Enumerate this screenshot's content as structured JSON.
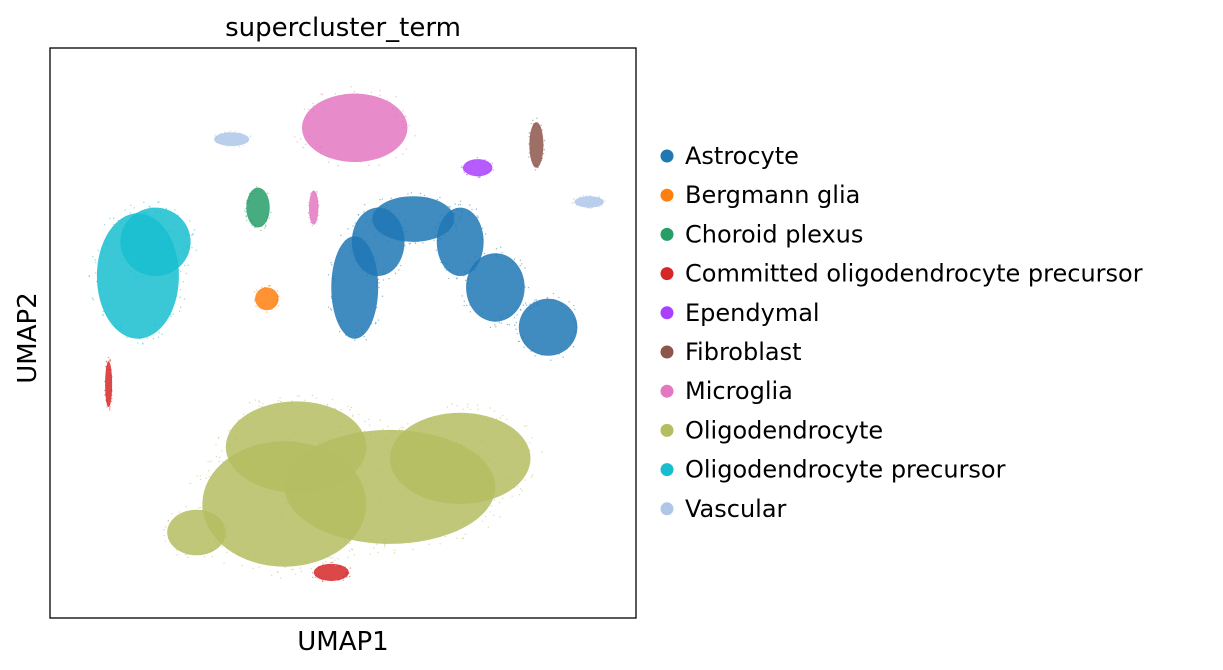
{
  "chart_data": {
    "type": "scatter",
    "title": "supercluster_term",
    "xlabel": "UMAP1",
    "ylabel": "UMAP2",
    "grid": false,
    "xticks": false,
    "yticks": false,
    "legend_position": "right-outside",
    "series": [
      {
        "name": "Astrocyte",
        "color": "#1f77b4",
        "clusters": [
          {
            "cx": 0.52,
            "cy": 0.58,
            "rx": 0.04,
            "ry": 0.09
          },
          {
            "cx": 0.56,
            "cy": 0.66,
            "rx": 0.045,
            "ry": 0.06
          },
          {
            "cx": 0.62,
            "cy": 0.7,
            "rx": 0.07,
            "ry": 0.04
          },
          {
            "cx": 0.7,
            "cy": 0.66,
            "rx": 0.04,
            "ry": 0.06
          },
          {
            "cx": 0.76,
            "cy": 0.58,
            "rx": 0.05,
            "ry": 0.06
          },
          {
            "cx": 0.85,
            "cy": 0.51,
            "rx": 0.05,
            "ry": 0.05
          }
        ]
      },
      {
        "name": "Bergmann glia",
        "color": "#ff7f0e",
        "clusters": [
          {
            "cx": 0.37,
            "cy": 0.56,
            "rx": 0.02,
            "ry": 0.02
          }
        ]
      },
      {
        "name": "Choroid plexus",
        "color": "#279e68",
        "clusters": [
          {
            "cx": 0.355,
            "cy": 0.72,
            "rx": 0.02,
            "ry": 0.035
          }
        ]
      },
      {
        "name": "Committed oligodendrocyte precursor",
        "color": "#d62728",
        "clusters": [
          {
            "cx": 0.1,
            "cy": 0.41,
            "rx": 0.006,
            "ry": 0.04
          },
          {
            "cx": 0.48,
            "cy": 0.08,
            "rx": 0.03,
            "ry": 0.015
          }
        ]
      },
      {
        "name": "Ependymal",
        "color": "#aa40fc",
        "clusters": [
          {
            "cx": 0.73,
            "cy": 0.79,
            "rx": 0.025,
            "ry": 0.015
          }
        ]
      },
      {
        "name": "Fibroblast",
        "color": "#8c564b",
        "clusters": [
          {
            "cx": 0.83,
            "cy": 0.83,
            "rx": 0.012,
            "ry": 0.04
          }
        ]
      },
      {
        "name": "Microglia",
        "color": "#e377c2",
        "clusters": [
          {
            "cx": 0.52,
            "cy": 0.86,
            "rx": 0.09,
            "ry": 0.06
          },
          {
            "cx": 0.45,
            "cy": 0.72,
            "rx": 0.008,
            "ry": 0.03
          }
        ]
      },
      {
        "name": "Oligodendrocyte",
        "color": "#b5bd61",
        "clusters": [
          {
            "cx": 0.4,
            "cy": 0.2,
            "rx": 0.14,
            "ry": 0.11
          },
          {
            "cx": 0.58,
            "cy": 0.23,
            "rx": 0.18,
            "ry": 0.1
          },
          {
            "cx": 0.42,
            "cy": 0.3,
            "rx": 0.12,
            "ry": 0.08
          },
          {
            "cx": 0.7,
            "cy": 0.28,
            "rx": 0.12,
            "ry": 0.08
          },
          {
            "cx": 0.25,
            "cy": 0.15,
            "rx": 0.05,
            "ry": 0.04
          }
        ]
      },
      {
        "name": "Oligodendrocyte precursor",
        "color": "#17becf",
        "clusters": [
          {
            "cx": 0.15,
            "cy": 0.6,
            "rx": 0.07,
            "ry": 0.11
          },
          {
            "cx": 0.18,
            "cy": 0.66,
            "rx": 0.06,
            "ry": 0.06
          }
        ]
      },
      {
        "name": "Vascular",
        "color": "#aec7e8",
        "clusters": [
          {
            "cx": 0.31,
            "cy": 0.84,
            "rx": 0.03,
            "ry": 0.012
          },
          {
            "cx": 0.92,
            "cy": 0.73,
            "rx": 0.025,
            "ry": 0.01
          }
        ]
      }
    ]
  }
}
